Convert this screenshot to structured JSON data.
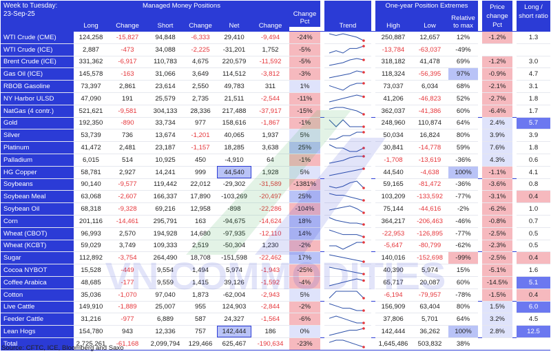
{
  "header": {
    "week_line1": "Week to Tuesday:",
    "week_line2": "23-Sep-25",
    "group_mm": "Managed Money Positions",
    "group_ext": "One-year Position Extremes",
    "price_change_pct": "Price change Pct",
    "long_short_ratio": "Long / short ratio",
    "cols": {
      "long": "Long",
      "change1": "Change",
      "short": "Short",
      "change2": "Change",
      "net": "Net",
      "change3": "Change",
      "change_pct": "Change Pct",
      "trend": "Trend",
      "high": "High",
      "low": "Low",
      "relative": "Relative to max"
    }
  },
  "rows": [
    {
      "name": "WTI Crude (CME)",
      "long": "124,258",
      "chg_long": "-15,827",
      "short": "94,848",
      "chg_short": "-6,333",
      "net": "29,410",
      "chg_net": "-9,494",
      "chg_pct": "-24%",
      "high": "250,887",
      "low": "12,657",
      "rel": "12%",
      "price": "-1.2%",
      "ratio": "1.3",
      "trend": [
        6,
        5,
        6,
        5,
        4,
        2
      ],
      "group_start": true
    },
    {
      "name": "WTI Crude (ICE)",
      "long": "2,887",
      "chg_long": "-473",
      "short": "34,088",
      "chg_short": "-2,225",
      "net": "-31,201",
      "chg_net": "1,752",
      "chg_pct": "-5%",
      "high": "-13,784",
      "low": "-63,037",
      "rel": "-49%",
      "price": "",
      "ratio": "",
      "trend": [
        3,
        4,
        3,
        5,
        5,
        6
      ]
    },
    {
      "name": "Brent Crude (ICE)",
      "long": "331,362",
      "chg_long": "-6,917",
      "short": "110,783",
      "chg_short": "4,675",
      "net": "220,579",
      "chg_net": "-11,592",
      "chg_pct": "-5%",
      "high": "318,182",
      "low": "41,478",
      "rel": "69%",
      "price": "-1.2%",
      "ratio": "3.0",
      "trend": [
        3,
        4,
        5,
        7,
        8,
        7
      ]
    },
    {
      "name": "Gas Oil (ICE)",
      "long": "145,578",
      "chg_long": "-163",
      "short": "31,066",
      "chg_short": "3,649",
      "net": "114,512",
      "chg_net": "-3,812",
      "chg_pct": "-3%",
      "high": "118,324",
      "low": "-56,395",
      "rel": "97%",
      "price": "-0.9%",
      "ratio": "4.7",
      "trend": [
        3,
        4,
        5,
        6,
        8,
        7
      ]
    },
    {
      "name": "RBOB Gasoline",
      "long": "73,397",
      "chg_long": "2,861",
      "short": "23,614",
      "chg_short": "2,550",
      "net": "49,783",
      "chg_net": "311",
      "chg_pct": "1%",
      "high": "73,037",
      "low": "6,034",
      "rel": "68%",
      "price": "-2.1%",
      "ratio": "3.1",
      "trend": [
        5,
        4,
        3,
        5,
        6,
        6
      ]
    },
    {
      "name": "NY Harbor ULSD",
      "long": "47,090",
      "chg_long": "191",
      "short": "25,579",
      "chg_short": "2,735",
      "net": "21,511",
      "chg_net": "-2,544",
      "chg_pct": "-11%",
      "high": "41,206",
      "low": "-46,823",
      "rel": "52%",
      "price": "-2.7%",
      "ratio": "1.8",
      "trend": [
        3,
        4,
        5,
        6,
        7,
        6
      ]
    },
    {
      "name": "NatGas (4 contr.)",
      "long": "521,621",
      "chg_long": "-9,581",
      "short": "304,133",
      "chg_short": "28,336",
      "net": "217,488",
      "chg_net": "-37,917",
      "chg_pct": "-15%",
      "high": "362,037",
      "low": "-41,386",
      "rel": "60%",
      "price": "-6.4%",
      "ratio": "1.7",
      "trend": [
        7,
        8,
        8,
        7,
        6,
        4
      ]
    },
    {
      "name": "Gold",
      "long": "192,350",
      "chg_long": "-890",
      "short": "33,734",
      "chg_short": "977",
      "net": "158,616",
      "chg_net": "-1,867",
      "chg_pct": "-1%",
      "high": "248,960",
      "low": "110,874",
      "rel": "64%",
      "price": "2.4%",
      "ratio": "5.7",
      "trend": [
        6,
        5,
        6,
        5,
        5,
        5
      ],
      "group_start": true
    },
    {
      "name": "Silver",
      "long": "53,739",
      "chg_long": "736",
      "short": "13,674",
      "chg_short": "-1,201",
      "net": "40,065",
      "chg_net": "1,937",
      "chg_pct": "5%",
      "high": "50,034",
      "low": "16,824",
      "rel": "80%",
      "price": "3.9%",
      "ratio": "3.9",
      "trend": [
        5,
        5,
        6,
        6,
        7,
        7
      ]
    },
    {
      "name": "Platinum",
      "long": "41,472",
      "chg_long": "2,481",
      "short": "23,187",
      "chg_short": "-1,157",
      "net": "18,285",
      "chg_net": "3,638",
      "chg_pct": "25%",
      "high": "30,841",
      "low": "-14,778",
      "rel": "59%",
      "price": "7.6%",
      "ratio": "1.8",
      "trend": [
        7,
        6,
        6,
        5,
        5,
        6
      ]
    },
    {
      "name": "Palladium",
      "long": "6,015",
      "chg_long": "514",
      "short": "10,925",
      "chg_short": "450",
      "net": "-4,910",
      "chg_net": "64",
      "chg_pct": "-1%",
      "high": "-1,708",
      "low": "-13,619",
      "rel": "-36%",
      "price": "4.3%",
      "ratio": "0.6",
      "trend": [
        3,
        4,
        5,
        7,
        8,
        8
      ]
    },
    {
      "name": "HG Copper",
      "long": "58,781",
      "chg_long": "2,927",
      "short": "14,241",
      "chg_short": "999",
      "net": "44,540",
      "chg_net": "1,928",
      "chg_pct": "5%",
      "high": "44,540",
      "low": "-4,638",
      "rel": "100%",
      "price": "-1.1%",
      "ratio": "4.1",
      "trend": [
        3,
        4,
        5,
        6,
        7,
        8
      ]
    },
    {
      "name": "Soybeans",
      "long": "90,140",
      "chg_long": "-9,577",
      "short": "119,442",
      "chg_short": "22,012",
      "net": "-29,302",
      "chg_net": "-31,589",
      "chg_pct": "-1381%",
      "high": "59,165",
      "low": "-81,472",
      "rel": "-36%",
      "price": "-3.6%",
      "ratio": "0.8",
      "trend": [
        4,
        3,
        4,
        6,
        7,
        3
      ],
      "group_start": true
    },
    {
      "name": "Soybean Meal",
      "long": "63,068",
      "chg_long": "-2,607",
      "short": "166,337",
      "chg_short": "17,890",
      "net": "-103,269",
      "chg_net": "-20,497",
      "chg_pct": "25%",
      "high": "103,209",
      "low": "-133,592",
      "rel": "-77%",
      "price": "-3.1%",
      "ratio": "0.4",
      "trend": [
        6,
        5,
        5,
        4,
        3,
        2
      ]
    },
    {
      "name": "Soybean Oil",
      "long": "68,318",
      "chg_long": "-9,328",
      "short": "69,216",
      "chg_short": "12,958",
      "net": "-898",
      "chg_net": "-22,286",
      "chg_pct": "-104%",
      "high": "75,144",
      "low": "-44,616",
      "rel": "-2%",
      "price": "-6.2%",
      "ratio": "1.0",
      "trend": [
        5,
        6,
        7,
        8,
        6,
        3
      ]
    },
    {
      "name": "Corn",
      "long": "201,116",
      "chg_long": "-14,461",
      "short": "295,791",
      "chg_short": "163",
      "net": "-94,675",
      "chg_net": "-14,624",
      "chg_pct": "18%",
      "high": "364,217",
      "low": "-206,463",
      "rel": "-46%",
      "price": "-0.8%",
      "ratio": "0.7",
      "trend": [
        8,
        6,
        5,
        4,
        4,
        3
      ]
    },
    {
      "name": "Wheat (CBOT)",
      "long": "96,993",
      "chg_long": "2,570",
      "short": "194,928",
      "chg_short": "14,680",
      "net": "-97,935",
      "chg_net": "-12,110",
      "chg_pct": "14%",
      "high": "-22,953",
      "low": "-126,895",
      "rel": "-77%",
      "price": "-2.5%",
      "ratio": "0.5",
      "trend": [
        6,
        5,
        4,
        4,
        4,
        3
      ]
    },
    {
      "name": "Wheat (KCBT)",
      "long": "59,029",
      "chg_long": "3,749",
      "short": "109,333",
      "chg_short": "2,519",
      "net": "-50,304",
      "chg_net": "1,230",
      "chg_pct": "-2%",
      "high": "-5,647",
      "low": "-80,799",
      "rel": "-62%",
      "price": "-2.3%",
      "ratio": "0.5",
      "trend": [
        4,
        4,
        3,
        4,
        5,
        5
      ]
    },
    {
      "name": "Sugar",
      "long": "112,892",
      "chg_long": "-3,754",
      "short": "264,490",
      "chg_short": "18,708",
      "net": "-151,598",
      "chg_net": "-22,462",
      "chg_pct": "17%",
      "high": "140,016",
      "low": "-152,698",
      "rel": "-99%",
      "price": "-2.5%",
      "ratio": "0.4",
      "trend": [
        7,
        6,
        5,
        4,
        3,
        2
      ],
      "group_start": true
    },
    {
      "name": "Cocoa NYBOT",
      "long": "15,528",
      "chg_long": "-449",
      "short": "9,554",
      "chg_short": "1,494",
      "net": "5,974",
      "chg_net": "-1,943",
      "chg_pct": "-25%",
      "high": "40,390",
      "low": "5,974",
      "rel": "15%",
      "price": "-5.1%",
      "ratio": "1.6",
      "trend": [
        7,
        6,
        5,
        4,
        3,
        2
      ]
    },
    {
      "name": "Coffee Arabica",
      "long": "48,685",
      "chg_long": "-177",
      "short": "9,559",
      "chg_short": "1,415",
      "net": "39,126",
      "chg_net": "-1,592",
      "chg_pct": "-4%",
      "high": "65,717",
      "low": "20,087",
      "rel": "60%",
      "price": "-14.5%",
      "ratio": "5.1",
      "trend": [
        4,
        5,
        6,
        7,
        8,
        7
      ]
    },
    {
      "name": "Cotton",
      "long": "35,036",
      "chg_long": "-1,070",
      "short": "97,040",
      "chg_short": "1,873",
      "net": "-62,004",
      "chg_net": "-2,943",
      "chg_pct": "5%",
      "high": "-6,194",
      "low": "-79,957",
      "rel": "-78%",
      "price": "-1.5%",
      "ratio": "0.4",
      "trend": [
        4,
        5,
        5,
        5,
        5,
        4
      ]
    },
    {
      "name": "Live Cattle",
      "long": "149,910",
      "chg_long": "-1,889",
      "short": "25,007",
      "chg_short": "955",
      "net": "124,903",
      "chg_net": "-2,844",
      "chg_pct": "-2%",
      "high": "156,909",
      "low": "63,404",
      "rel": "80%",
      "price": "1.5%",
      "ratio": "6.0",
      "trend": [
        8,
        7,
        6,
        6,
        5,
        5
      ],
      "group_start": true
    },
    {
      "name": "Feeder Cattle",
      "long": "31,216",
      "chg_long": "-977",
      "short": "6,889",
      "chg_short": "587",
      "net": "24,327",
      "chg_net": "-1,564",
      "chg_pct": "-6%",
      "high": "37,806",
      "low": "5,701",
      "rel": "64%",
      "price": "3.2%",
      "ratio": "4.5",
      "trend": [
        6,
        7,
        6,
        5,
        4,
        4
      ]
    },
    {
      "name": "Lean Hogs",
      "long": "154,780",
      "chg_long": "943",
      "short": "12,336",
      "chg_short": "757",
      "net": "142,444",
      "chg_net": "186",
      "chg_pct": "0%",
      "high": "142,444",
      "low": "36,262",
      "rel": "100%",
      "price": "2.8%",
      "ratio": "12.5",
      "trend": [
        4,
        5,
        6,
        7,
        7,
        8
      ]
    },
    {
      "name": "Total",
      "long": "2,725,261",
      "chg_long": "-61,168",
      "short": "2,099,794",
      "chg_short": "129,466",
      "net": "625,467",
      "chg_net": "-190,634",
      "chg_pct": "-23%",
      "high": "1,645,486",
      "low": "503,832",
      "rel": "38%",
      "price": "",
      "ratio": "",
      "trend": [
        6,
        7,
        7,
        6,
        5,
        4
      ],
      "group_start": true,
      "total": true
    }
  ],
  "source": "Source: CFTC, ICE, Bloomberg and Saxo",
  "watermark": "VN COMMODITIES",
  "colors": {
    "header_blue": "#2b3bd6",
    "negative_red": "#e5363b",
    "pink": "#f6b9be",
    "light_blue": "#b9c3f7",
    "strong_blue": "#6b78f0"
  }
}
